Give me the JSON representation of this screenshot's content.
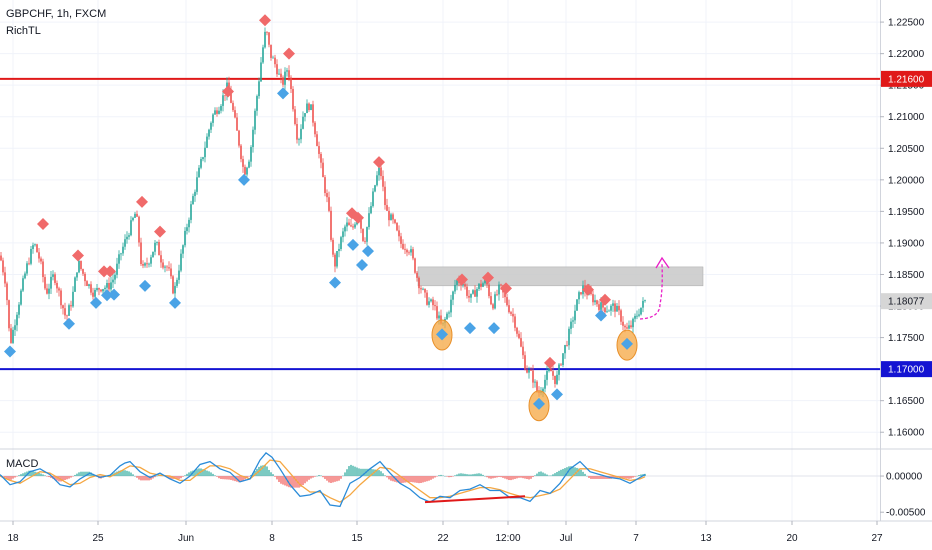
{
  "header": {
    "symbol_line": "GBPCHF, 1h, FXCM",
    "indicator": "RichTL"
  },
  "macd_label": "MACD",
  "colors": {
    "up": "#26a69a",
    "down": "#ef5350",
    "resistance": "#e01919",
    "support": "#1414d2",
    "zone": "#c8c8c8",
    "peak_marker": "#f06a6a",
    "trough_marker": "#4aa3e6",
    "highlight": "#f5a742",
    "arrow": "#e91ec7",
    "macd_line": "#2a8bd8",
    "signal_line": "#f5a742",
    "divergence": "#e01919"
  },
  "chart_data": [
    {
      "type": "candlestick",
      "symbol": "GBPCHF",
      "timeframe": "1h",
      "source": "FXCM",
      "ylim": [
        1.1575,
        1.2285
      ],
      "y_ticks": [
        "1.22500",
        "1.22000",
        "1.21500",
        "1.21000",
        "1.20500",
        "1.20000",
        "1.19500",
        "1.19000",
        "1.18500",
        "1.18000",
        "1.17500",
        "1.17000",
        "1.16500",
        "1.16000"
      ],
      "x_ticks": [
        "18",
        "25",
        "Jun",
        "8",
        "15",
        "22",
        "12:00",
        "Jul",
        "7",
        "13",
        "20",
        "27"
      ],
      "price_labels": [
        {
          "text": "1.21600",
          "value": 1.216,
          "kind": "resistance"
        },
        {
          "text": "1.18077",
          "value": 1.18077,
          "kind": "last"
        },
        {
          "text": "1.17000",
          "value": 1.17,
          "kind": "support"
        }
      ],
      "horizontal_lines": [
        {
          "value": 1.216,
          "color": "#e01919"
        },
        {
          "value": 1.17,
          "color": "#1414d2"
        }
      ],
      "zone": {
        "from": 1.1832,
        "to": 1.1862
      },
      "close_path": [
        [
          0,
          1.188
        ],
        [
          6,
          1.1835
        ],
        [
          10,
          1.1738
        ],
        [
          18,
          1.18
        ],
        [
          26,
          1.1858
        ],
        [
          34,
          1.19
        ],
        [
          40,
          1.1872
        ],
        [
          46,
          1.182
        ],
        [
          54,
          1.185
        ],
        [
          60,
          1.1815
        ],
        [
          66,
          1.178
        ],
        [
          72,
          1.181
        ],
        [
          78,
          1.187
        ],
        [
          86,
          1.184
        ],
        [
          94,
          1.182
        ],
        [
          100,
          1.183
        ],
        [
          108,
          1.183
        ],
        [
          114,
          1.1845
        ],
        [
          120,
          1.188
        ],
        [
          128,
          1.1915
        ],
        [
          136,
          1.195
        ],
        [
          142,
          1.1855
        ],
        [
          148,
          1.187
        ],
        [
          156,
          1.19
        ],
        [
          162,
          1.187
        ],
        [
          168,
          1.186
        ],
        [
          174,
          1.182
        ],
        [
          180,
          1.187
        ],
        [
          186,
          1.192
        ],
        [
          194,
          1.198
        ],
        [
          200,
          1.202
        ],
        [
          206,
          1.206
        ],
        [
          212,
          1.21
        ],
        [
          220,
          1.212
        ],
        [
          228,
          1.215
        ],
        [
          234,
          1.21
        ],
        [
          240,
          1.205
        ],
        [
          244,
          1.201
        ],
        [
          250,
          1.204
        ],
        [
          256,
          1.212
        ],
        [
          262,
          1.22
        ],
        [
          266,
          1.224
        ],
        [
          270,
          1.22
        ],
        [
          276,
          1.218
        ],
        [
          282,
          1.215
        ],
        [
          288,
          1.218
        ],
        [
          292,
          1.213
        ],
        [
          298,
          1.206
        ],
        [
          304,
          1.211
        ],
        [
          310,
          1.212
        ],
        [
          316,
          1.207
        ],
        [
          322,
          1.201
        ],
        [
          328,
          1.196
        ],
        [
          334,
          1.186
        ],
        [
          340,
          1.19
        ],
        [
          346,
          1.193
        ],
        [
          352,
          1.192
        ],
        [
          358,
          1.195
        ],
        [
          364,
          1.19
        ],
        [
          370,
          1.195
        ],
        [
          376,
          1.2
        ],
        [
          380,
          1.202
        ],
        [
          386,
          1.195
        ],
        [
          394,
          1.193
        ],
        [
          400,
          1.19
        ],
        [
          410,
          1.189
        ],
        [
          418,
          1.184
        ],
        [
          426,
          1.181
        ],
        [
          434,
          1.18
        ],
        [
          442,
          1.1765
        ],
        [
          450,
          1.18
        ],
        [
          456,
          1.184
        ],
        [
          462,
          1.184
        ],
        [
          470,
          1.181
        ],
        [
          478,
          1.183
        ],
        [
          486,
          1.184
        ],
        [
          492,
          1.18
        ],
        [
          500,
          1.183
        ],
        [
          508,
          1.18
        ],
        [
          514,
          1.178
        ],
        [
          520,
          1.174
        ],
        [
          526,
          1.17
        ],
        [
          532,
          1.169
        ],
        [
          538,
          1.166
        ],
        [
          544,
          1.168
        ],
        [
          550,
          1.17
        ],
        [
          556,
          1.168
        ],
        [
          562,
          1.172
        ],
        [
          568,
          1.175
        ],
        [
          576,
          1.18
        ],
        [
          582,
          1.183
        ],
        [
          588,
          1.182
        ],
        [
          594,
          1.181
        ],
        [
          600,
          1.18
        ],
        [
          608,
          1.1795
        ],
        [
          614,
          1.18
        ],
        [
          620,
          1.1785
        ],
        [
          626,
          1.176
        ],
        [
          632,
          1.177
        ],
        [
          638,
          1.179
        ],
        [
          645,
          1.1808
        ]
      ],
      "markers": [
        {
          "x": 10,
          "price": 1.1728,
          "kind": "trough"
        },
        {
          "x": 43,
          "price": 1.193,
          "kind": "peak"
        },
        {
          "x": 69,
          "price": 1.1772,
          "kind": "trough"
        },
        {
          "x": 78,
          "price": 1.188,
          "kind": "peak"
        },
        {
          "x": 96,
          "price": 1.1805,
          "kind": "trough"
        },
        {
          "x": 104,
          "price": 1.1855,
          "kind": "peak"
        },
        {
          "x": 110,
          "price": 1.1855,
          "kind": "peak"
        },
        {
          "x": 107,
          "price": 1.1817,
          "kind": "trough"
        },
        {
          "x": 114,
          "price": 1.1818,
          "kind": "trough"
        },
        {
          "x": 142,
          "price": 1.1965,
          "kind": "peak"
        },
        {
          "x": 145,
          "price": 1.1832,
          "kind": "trough"
        },
        {
          "x": 160,
          "price": 1.1918,
          "kind": "peak"
        },
        {
          "x": 175,
          "price": 1.1805,
          "kind": "trough"
        },
        {
          "x": 228,
          "price": 1.214,
          "kind": "peak"
        },
        {
          "x": 244,
          "price": 1.2,
          "kind": "trough"
        },
        {
          "x": 265,
          "price": 1.2253,
          "kind": "peak"
        },
        {
          "x": 289,
          "price": 1.22,
          "kind": "peak"
        },
        {
          "x": 283,
          "price": 1.2137,
          "kind": "trough"
        },
        {
          "x": 335,
          "price": 1.1837,
          "kind": "trough"
        },
        {
          "x": 352,
          "price": 1.1947,
          "kind": "peak"
        },
        {
          "x": 358,
          "price": 1.194,
          "kind": "peak"
        },
        {
          "x": 353,
          "price": 1.1897,
          "kind": "trough"
        },
        {
          "x": 362,
          "price": 1.1865,
          "kind": "trough"
        },
        {
          "x": 368,
          "price": 1.1887,
          "kind": "trough"
        },
        {
          "x": 379,
          "price": 1.2028,
          "kind": "peak"
        },
        {
          "x": 442,
          "price": 1.1755,
          "kind": "trough"
        },
        {
          "x": 462,
          "price": 1.1842,
          "kind": "peak"
        },
        {
          "x": 470,
          "price": 1.1765,
          "kind": "trough"
        },
        {
          "x": 488,
          "price": 1.1845,
          "kind": "peak"
        },
        {
          "x": 494,
          "price": 1.1765,
          "kind": "trough"
        },
        {
          "x": 506,
          "price": 1.1828,
          "kind": "peak"
        },
        {
          "x": 539,
          "price": 1.1645,
          "kind": "trough"
        },
        {
          "x": 550,
          "price": 1.171,
          "kind": "peak"
        },
        {
          "x": 557,
          "price": 1.166,
          "kind": "trough"
        },
        {
          "x": 588,
          "price": 1.1826,
          "kind": "peak"
        },
        {
          "x": 605,
          "price": 1.181,
          "kind": "peak"
        },
        {
          "x": 601,
          "price": 1.1785,
          "kind": "trough"
        },
        {
          "x": 627,
          "price": 1.174,
          "kind": "trough"
        }
      ],
      "highlights": [
        {
          "x": 442,
          "price": 1.1754
        },
        {
          "x": 539,
          "price": 1.1642
        },
        {
          "x": 627,
          "price": 1.1738
        }
      ]
    },
    {
      "type": "macd",
      "title": "MACD",
      "ylim": [
        -0.0058,
        0.0036
      ],
      "y_ticks": [
        "0.00000",
        "-0.00500"
      ],
      "macd_line": [
        [
          0,
          0.0002
        ],
        [
          10,
          -0.0012
        ],
        [
          20,
          -0.0008
        ],
        [
          30,
          0.0006
        ],
        [
          40,
          0.001
        ],
        [
          50,
          0.0002
        ],
        [
          60,
          -0.0012
        ],
        [
          70,
          -0.0015
        ],
        [
          80,
          -0.0004
        ],
        [
          90,
          0.0004
        ],
        [
          100,
          -0.0002
        ],
        [
          110,
          0.0001
        ],
        [
          120,
          0.0014
        ],
        [
          125,
          0.0018
        ],
        [
          130,
          0.002
        ],
        [
          140,
          0.0006
        ],
        [
          150,
          -0.0002
        ],
        [
          160,
          0.0004
        ],
        [
          170,
          -0.0004
        ],
        [
          180,
          -0.001
        ],
        [
          190,
          0.0
        ],
        [
          200,
          0.0016
        ],
        [
          210,
          0.002
        ],
        [
          220,
          0.001
        ],
        [
          230,
          0.0005
        ],
        [
          240,
          -0.0008
        ],
        [
          250,
          -0.0004
        ],
        [
          260,
          0.0022
        ],
        [
          266,
          0.0032
        ],
        [
          272,
          0.0026
        ],
        [
          280,
          0.001
        ],
        [
          290,
          -0.0012
        ],
        [
          300,
          -0.0028
        ],
        [
          310,
          -0.0026
        ],
        [
          320,
          -0.002
        ],
        [
          330,
          -0.004
        ],
        [
          340,
          -0.0042
        ],
        [
          350,
          -0.001
        ],
        [
          360,
          -0.0002
        ],
        [
          370,
          0.001
        ],
        [
          380,
          0.002
        ],
        [
          390,
          0.0004
        ],
        [
          400,
          -0.001
        ],
        [
          410,
          -0.0018
        ],
        [
          420,
          -0.003
        ],
        [
          430,
          -0.0036
        ],
        [
          440,
          -0.0028
        ],
        [
          450,
          -0.003
        ],
        [
          460,
          -0.002
        ],
        [
          470,
          -0.0018
        ],
        [
          480,
          -0.0012
        ],
        [
          490,
          -0.002
        ],
        [
          500,
          -0.002
        ],
        [
          510,
          -0.003
        ],
        [
          520,
          -0.003
        ],
        [
          530,
          -0.0035
        ],
        [
          540,
          -0.002
        ],
        [
          550,
          -0.0024
        ],
        [
          560,
          -0.001
        ],
        [
          570,
          0.001
        ],
        [
          580,
          0.002
        ],
        [
          590,
          0.0006
        ],
        [
          600,
          0.0002
        ],
        [
          610,
          -0.0002
        ],
        [
          620,
          -0.0004
        ],
        [
          630,
          -0.001
        ],
        [
          640,
          -0.0002
        ],
        [
          645,
          0.0002
        ]
      ],
      "signal_line": [
        [
          0,
          0.0
        ],
        [
          10,
          -0.0006
        ],
        [
          20,
          -0.001
        ],
        [
          30,
          -0.0002
        ],
        [
          40,
          0.0006
        ],
        [
          50,
          0.0004
        ],
        [
          60,
          -0.0004
        ],
        [
          70,
          -0.0012
        ],
        [
          80,
          -0.001
        ],
        [
          90,
          -0.0002
        ],
        [
          100,
          0.0002
        ],
        [
          110,
          -0.0001
        ],
        [
          120,
          0.0006
        ],
        [
          130,
          0.0014
        ],
        [
          140,
          0.0012
        ],
        [
          150,
          0.0004
        ],
        [
          160,
          0.0001
        ],
        [
          170,
          0.0
        ],
        [
          180,
          -0.0006
        ],
        [
          190,
          -0.0006
        ],
        [
          200,
          0.0005
        ],
        [
          210,
          0.0014
        ],
        [
          220,
          0.0014
        ],
        [
          230,
          0.001
        ],
        [
          240,
          0.0001
        ],
        [
          250,
          -0.0004
        ],
        [
          260,
          0.0008
        ],
        [
          270,
          0.0022
        ],
        [
          280,
          0.002
        ],
        [
          290,
          0.0004
        ],
        [
          300,
          -0.0012
        ],
        [
          310,
          -0.0022
        ],
        [
          320,
          -0.0022
        ],
        [
          330,
          -0.003
        ],
        [
          340,
          -0.0036
        ],
        [
          350,
          -0.0026
        ],
        [
          360,
          -0.0012
        ],
        [
          370,
          0.0
        ],
        [
          380,
          0.0012
        ],
        [
          390,
          0.001
        ],
        [
          400,
          0.0
        ],
        [
          410,
          -0.001
        ],
        [
          420,
          -0.002
        ],
        [
          430,
          -0.003
        ],
        [
          440,
          -0.003
        ],
        [
          450,
          -0.0028
        ],
        [
          460,
          -0.0024
        ],
        [
          470,
          -0.002
        ],
        [
          480,
          -0.0016
        ],
        [
          490,
          -0.0016
        ],
        [
          500,
          -0.0019
        ],
        [
          510,
          -0.0024
        ],
        [
          520,
          -0.0028
        ],
        [
          530,
          -0.003
        ],
        [
          540,
          -0.0027
        ],
        [
          550,
          -0.0024
        ],
        [
          560,
          -0.0018
        ],
        [
          570,
          -0.0004
        ],
        [
          580,
          0.001
        ],
        [
          590,
          0.001
        ],
        [
          600,
          0.0006
        ],
        [
          610,
          0.0002
        ],
        [
          620,
          -0.0002
        ],
        [
          630,
          -0.0006
        ],
        [
          640,
          -0.0004
        ],
        [
          645,
          -0.0001
        ]
      ],
      "divergence_line": {
        "from": [
          425,
          -0.0036
        ],
        "to": [
          525,
          -0.0028
        ]
      }
    }
  ]
}
